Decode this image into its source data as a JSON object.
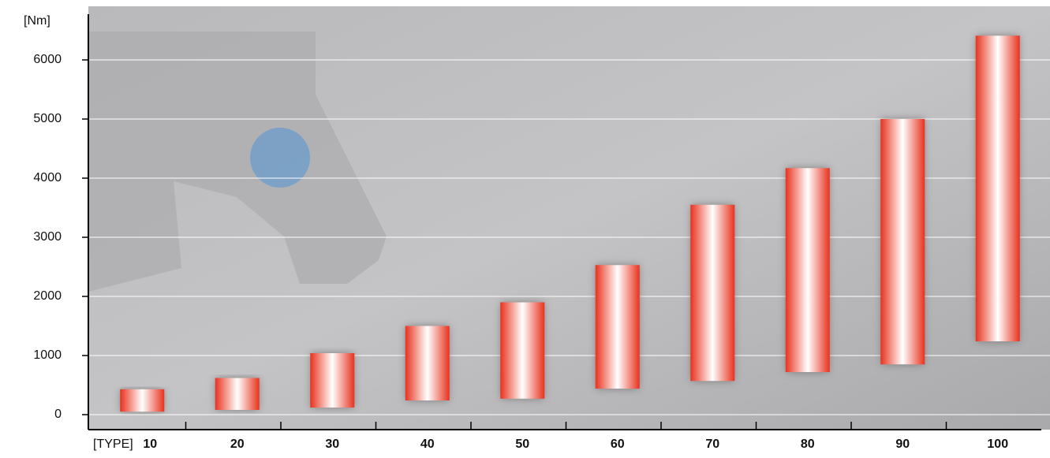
{
  "chart_data": {
    "type": "floating-bar",
    "y_label": "[Nm]",
    "x_label": "[TYPE]",
    "categories": [
      "10",
      "20",
      "30",
      "40",
      "50",
      "60",
      "70",
      "80",
      "90",
      "100"
    ],
    "low": [
      50,
      80,
      120,
      240,
      270,
      440,
      570,
      720,
      850,
      1240
    ],
    "high": [
      430,
      620,
      1040,
      1500,
      1900,
      2530,
      3550,
      4170,
      5000,
      6410
    ],
    "color": "#e8321e",
    "ylim": [
      0,
      6700
    ],
    "yticks": [
      0,
      1000,
      2000,
      3000,
      4000,
      5000,
      6000
    ],
    "grid": true
  }
}
